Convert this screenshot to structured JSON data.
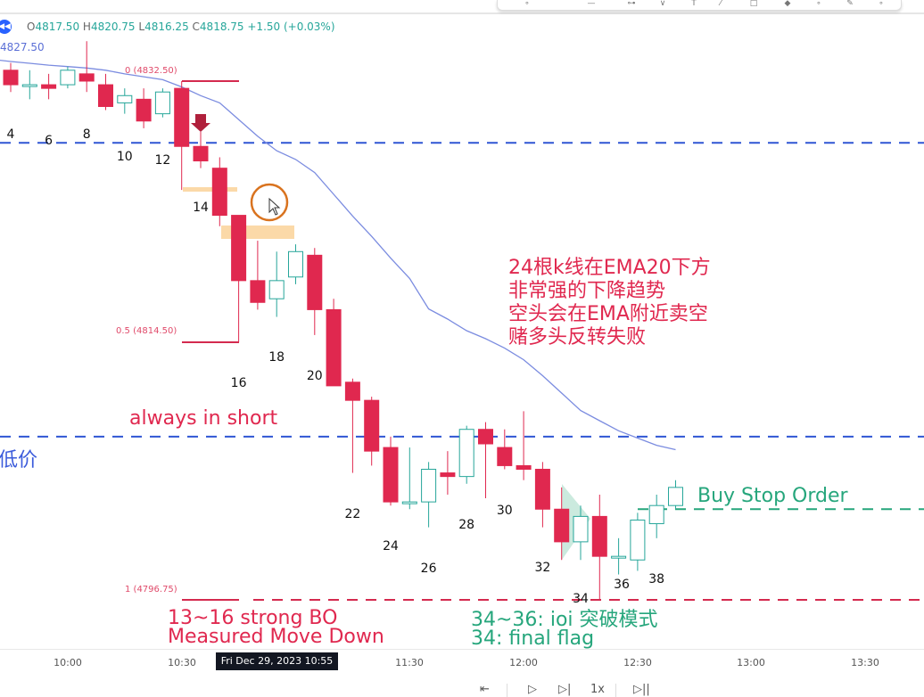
{
  "header": {
    "ohlc": {
      "o_label": "O",
      "o": "4817.50",
      "h_label": "H",
      "h": "4820.75",
      "l_label": "L",
      "l": "4816.25",
      "c_label": "C",
      "c": "4818.75",
      "change": "+1.50 (+0.03%)"
    },
    "ema_value": "4827.50"
  },
  "colors": {
    "bull": "#26a69a",
    "bear": "#e0284f",
    "ema": "#7b8ce0",
    "level_blue": "#2f55d4",
    "buy_stop": "#26a67c",
    "fib": "#d42a4e",
    "highlight": "#fbd9a8",
    "circle": "#d9731f"
  },
  "fib": {
    "level_0": "0 (4832.50)",
    "level_05": "0.5 (4814.50)",
    "level_1": "1 (4796.75)"
  },
  "chart_data": {
    "type": "candlestick",
    "bar_numbers": [
      4,
      6,
      8,
      10,
      12,
      14,
      16,
      18,
      20,
      22,
      24,
      26,
      28,
      30,
      32,
      34,
      36,
      38
    ],
    "candles": [
      {
        "n": 4,
        "o": 4833.25,
        "h": 4833.75,
        "l": 4831.75,
        "c": 4832.25
      },
      {
        "n": 5,
        "o": 4832.25,
        "h": 4833.25,
        "l": 4831.25,
        "c": 4832.25
      },
      {
        "n": 6,
        "o": 4832.25,
        "h": 4833.0,
        "l": 4831.25,
        "c": 4832.0
      },
      {
        "n": 7,
        "o": 4832.25,
        "h": 4833.5,
        "l": 4832.0,
        "c": 4833.25
      },
      {
        "n": 8,
        "o": 4833.0,
        "h": 4835.25,
        "l": 4831.75,
        "c": 4832.5
      },
      {
        "n": 9,
        "o": 4832.25,
        "h": 4833.0,
        "l": 4830.5,
        "c": 4830.75
      },
      {
        "n": 10,
        "o": 4831.0,
        "h": 4832.0,
        "l": 4830.25,
        "c": 4831.5
      },
      {
        "n": 11,
        "o": 4831.25,
        "h": 4832.0,
        "l": 4829.25,
        "c": 4829.75
      },
      {
        "n": 12,
        "o": 4830.25,
        "h": 4832.0,
        "l": 4830.0,
        "c": 4831.75
      },
      {
        "n": 13,
        "o": 4832.0,
        "h": 4832.5,
        "l": 4825.0,
        "c": 4828.0
      },
      {
        "n": 14,
        "o": 4828.0,
        "h": 4829.0,
        "l": 4826.5,
        "c": 4827.0
      },
      {
        "n": 15,
        "o": 4826.5,
        "h": 4827.25,
        "l": 4822.5,
        "c": 4823.25
      },
      {
        "n": 16,
        "o": 4823.25,
        "h": 4823.25,
        "l": 4814.5,
        "c": 4818.75
      },
      {
        "n": 17,
        "o": 4818.75,
        "h": 4821.5,
        "l": 4816.75,
        "c": 4817.25
      },
      {
        "n": 18,
        "o": 4817.5,
        "h": 4820.75,
        "l": 4816.25,
        "c": 4818.75
      },
      {
        "n": 19,
        "o": 4819.0,
        "h": 4821.25,
        "l": 4818.5,
        "c": 4820.75
      },
      {
        "n": 20,
        "o": 4820.5,
        "h": 4821.0,
        "l": 4815.0,
        "c": 4816.75
      },
      {
        "n": 21,
        "o": 4816.75,
        "h": 4817.5,
        "l": 4811.5,
        "c": 4811.5
      },
      {
        "n": 22,
        "o": 4811.75,
        "h": 4812.0,
        "l": 4805.5,
        "c": 4810.5
      },
      {
        "n": 23,
        "o": 4810.5,
        "h": 4810.75,
        "l": 4806.0,
        "c": 4807.0
      },
      {
        "n": 24,
        "o": 4807.25,
        "h": 4808.0,
        "l": 4803.25,
        "c": 4803.5
      },
      {
        "n": 25,
        "o": 4803.5,
        "h": 4807.25,
        "l": 4803.0,
        "c": 4803.5
      },
      {
        "n": 26,
        "o": 4803.5,
        "h": 4806.25,
        "l": 4801.75,
        "c": 4805.75
      },
      {
        "n": 27,
        "o": 4805.5,
        "h": 4807.0,
        "l": 4804.0,
        "c": 4805.25
      },
      {
        "n": 28,
        "o": 4805.25,
        "h": 4808.75,
        "l": 4804.75,
        "c": 4808.5
      },
      {
        "n": 29,
        "o": 4808.5,
        "h": 4809.0,
        "l": 4803.75,
        "c": 4807.5
      },
      {
        "n": 30,
        "o": 4807.25,
        "h": 4808.5,
        "l": 4805.75,
        "c": 4806.0
      },
      {
        "n": 31,
        "o": 4806.0,
        "h": 4809.75,
        "l": 4805.0,
        "c": 4805.75
      },
      {
        "n": 32,
        "o": 4805.75,
        "h": 4806.25,
        "l": 4801.75,
        "c": 4803.0
      },
      {
        "n": 33,
        "o": 4803.0,
        "h": 4804.5,
        "l": 4799.5,
        "c": 4800.75
      },
      {
        "n": 34,
        "o": 4800.75,
        "h": 4803.25,
        "l": 4799.5,
        "c": 4802.5
      },
      {
        "n": 35,
        "o": 4802.5,
        "h": 4804.0,
        "l": 4796.75,
        "c": 4799.75
      },
      {
        "n": 36,
        "o": 4799.75,
        "h": 4801.0,
        "l": 4798.5,
        "c": 4799.75
      },
      {
        "n": 37,
        "o": 4799.5,
        "h": 4802.75,
        "l": 4798.75,
        "c": 4802.25
      },
      {
        "n": 38,
        "o": 4802.0,
        "h": 4804.0,
        "l": 4801.0,
        "c": 4803.25
      },
      {
        "n": 39,
        "o": 4803.25,
        "h": 4805.0,
        "l": 4803.0,
        "c": 4804.5
      }
    ],
    "ema20": [
      4834.0,
      4833.85,
      4833.73,
      4833.6,
      4833.5,
      4833.4,
      4833.25,
      4833.0,
      4832.8,
      4832.6,
      4832.1,
      4831.5,
      4831.0,
      4829.85,
      4828.7,
      4827.7,
      4827.1,
      4826.2,
      4824.7,
      4823.2,
      4821.8,
      4820.3,
      4818.9,
      4816.8,
      4816.1,
      4815.3,
      4814.75,
      4814.1,
      4813.3,
      4812.2,
      4811.0,
      4809.8,
      4809.1,
      4808.4,
      4807.9,
      4807.4,
      4807.1
    ],
    "ema_start_bar": 3,
    "levels": {
      "blue_upper": 4828.25,
      "blue_lower": 4808.0,
      "buy_stop": 4803.0,
      "fib_0": 4832.5,
      "fib_05": 4814.5,
      "fib_1": 4796.75
    }
  },
  "annotations": {
    "cn_lines": [
      "24根k线在EMA20下方",
      "非常强的下降趋势",
      "空头会在EMA附近卖空",
      "赌多头反转失败"
    ],
    "always_in_short": "always in short",
    "low_price": "低价",
    "buy_stop": "Buy Stop Order",
    "bo_line1": "13~16 strong BO",
    "bo_line2": "Measured Move Down",
    "ioi_line1": "34~36: ioi 突破模式",
    "ioi_line2": "34: final flag"
  },
  "time_axis": {
    "ticks": [
      "10:00",
      "10:30",
      "11:30",
      "12:00",
      "12:30",
      "13:00",
      "13:30"
    ],
    "crosshair": "Fri Dec 29, 2023   10:55"
  },
  "replay": {
    "speed": "1x"
  }
}
